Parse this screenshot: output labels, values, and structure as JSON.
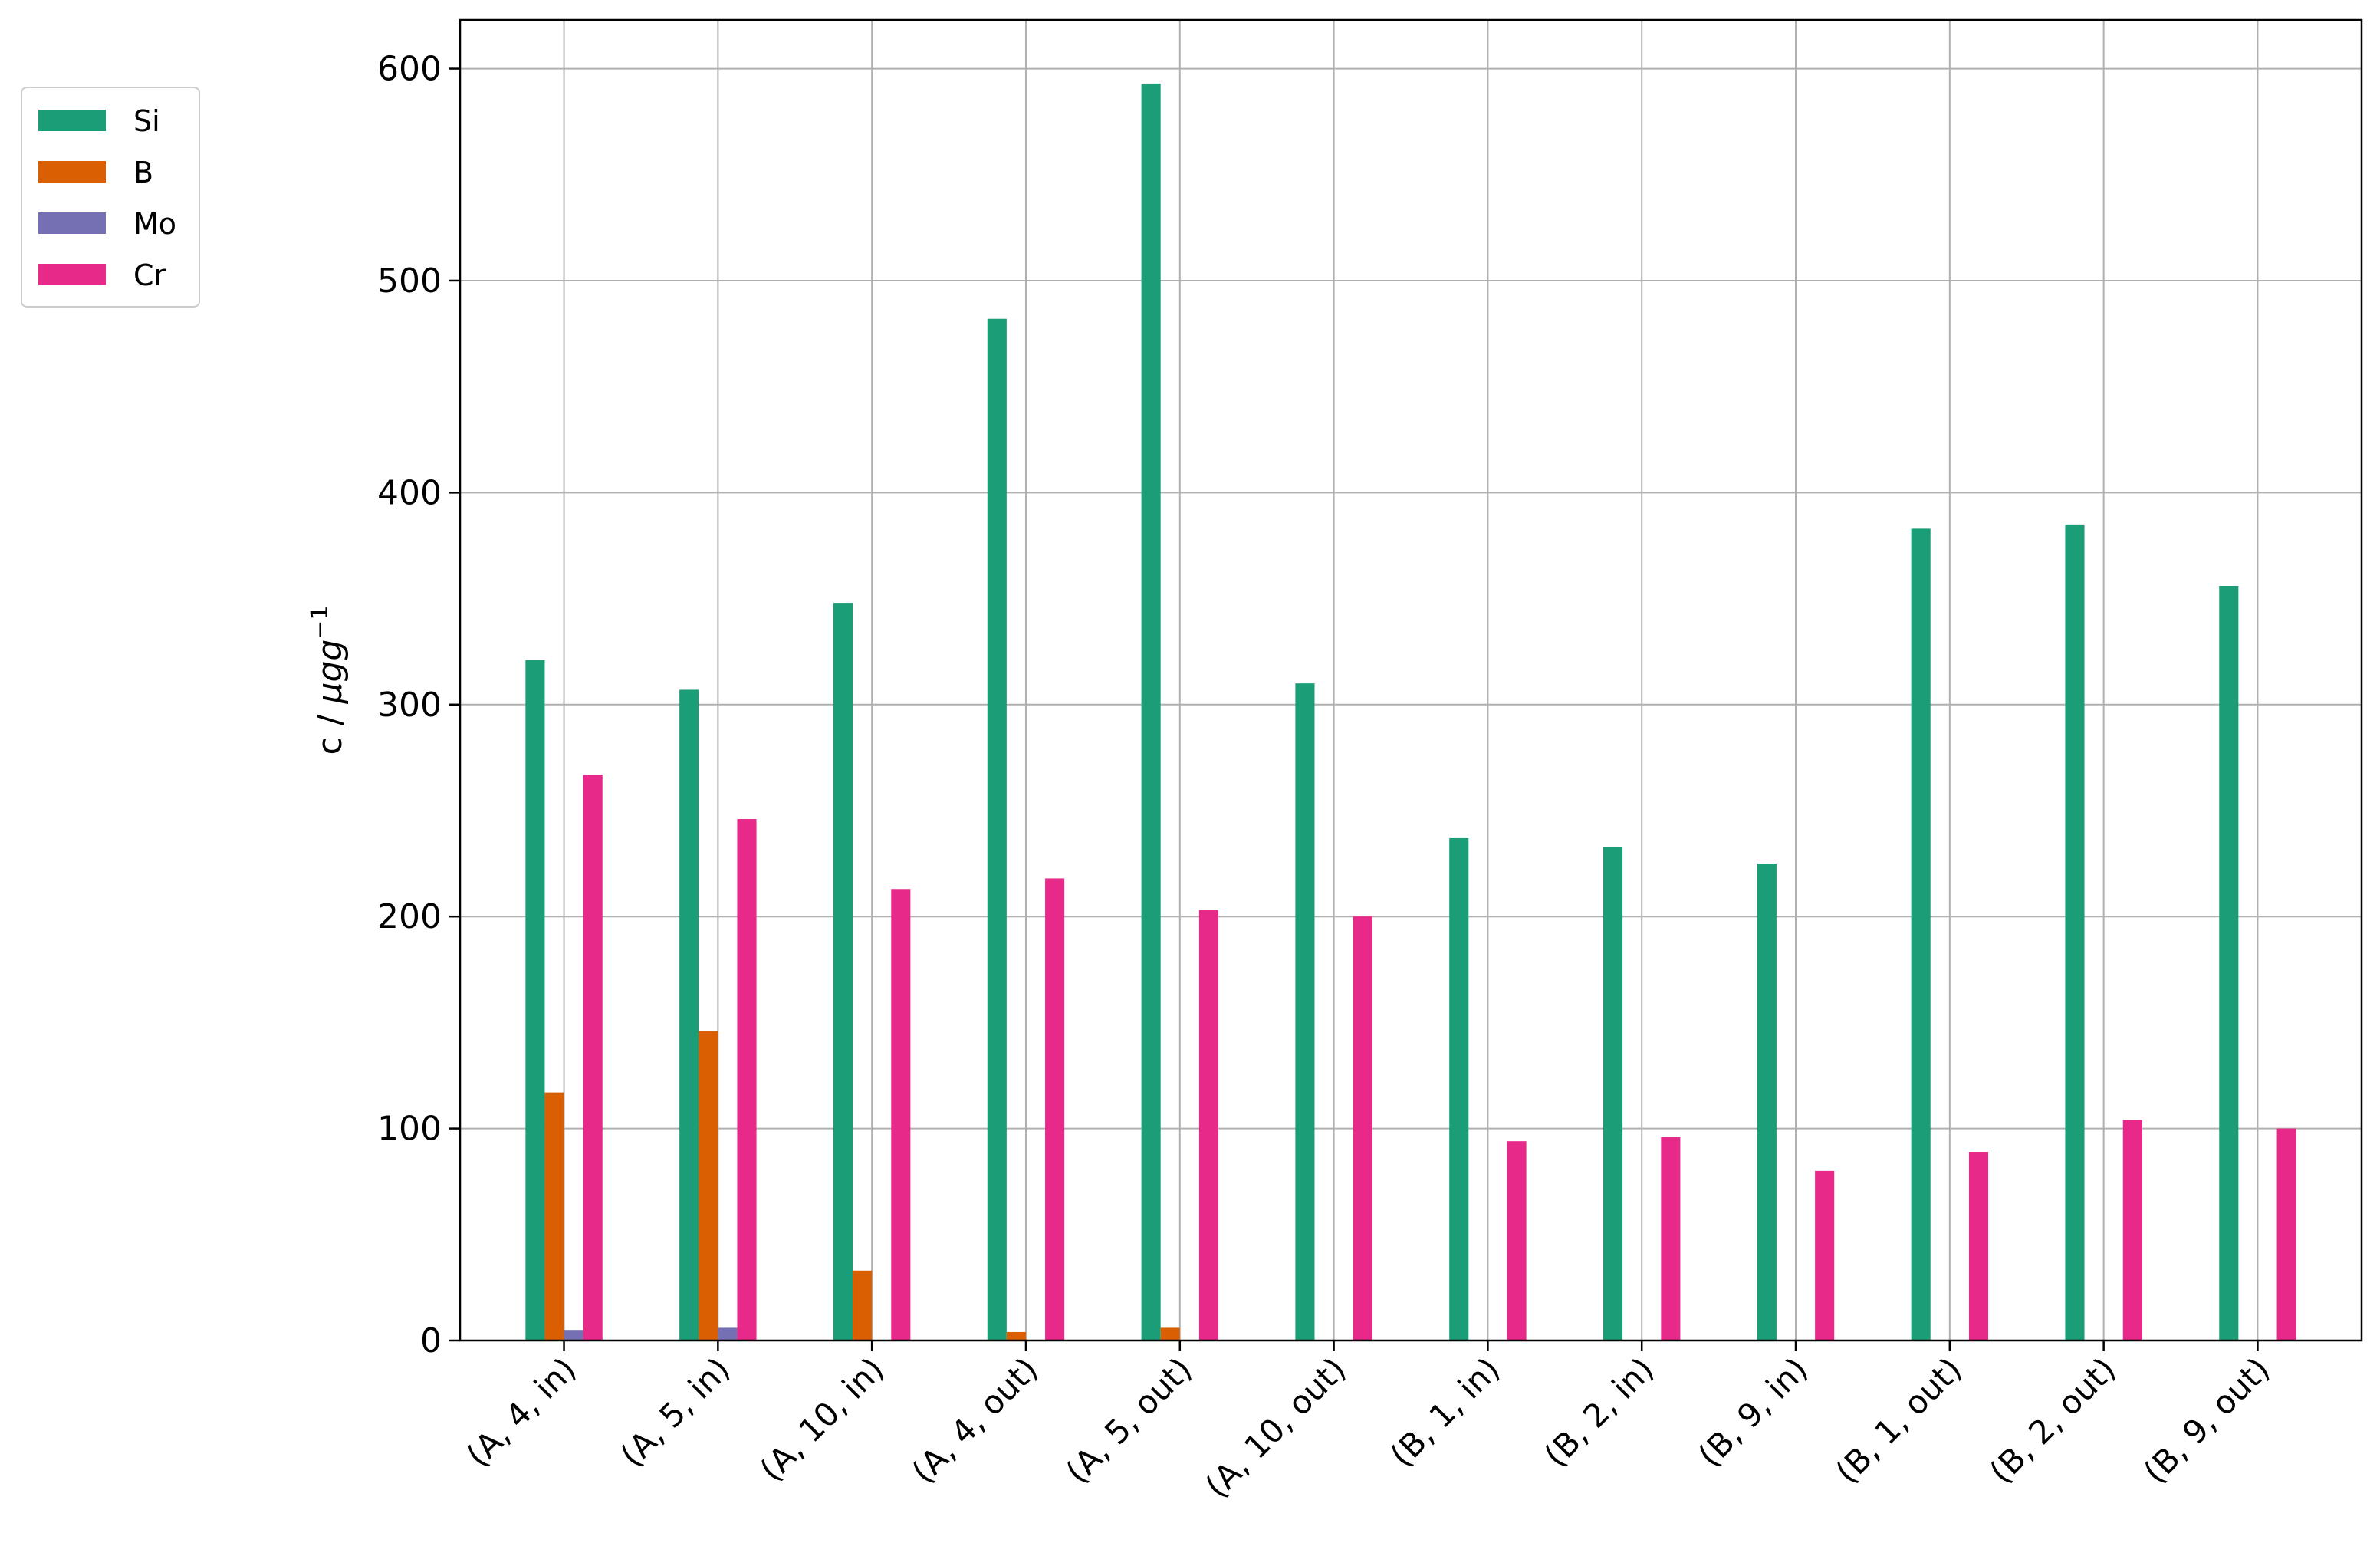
{
  "chart_data": {
    "type": "bar",
    "title": "",
    "xlabel": "",
    "ylabel": {
      "text": "c / ",
      "math": "μgg",
      "exp": "−1"
    },
    "ylim": [
      0,
      623
    ],
    "yticks": [
      0,
      100,
      200,
      300,
      400,
      500,
      600
    ],
    "grid": true,
    "legend_position": "outside-top-left",
    "categories": [
      "(A, 4, in)",
      "(A, 5, in)",
      "(A, 10, in)",
      "(A, 4, out)",
      "(A, 5, out)",
      "(A, 10, out)",
      "(B, 1, in)",
      "(B, 2, in)",
      "(B, 9, in)",
      "(B, 1, out)",
      "(B, 2, out)",
      "(B, 9, out)"
    ],
    "series": [
      {
        "name": "Si",
        "color": "#1b9e77",
        "values": [
          321,
          307,
          348,
          482,
          593,
          310,
          237,
          233,
          225,
          383,
          385,
          356
        ]
      },
      {
        "name": "B",
        "color": "#d95f02",
        "values": [
          117,
          146,
          33,
          4,
          6,
          0,
          0,
          0,
          0,
          0,
          0,
          0
        ]
      },
      {
        "name": "Mo",
        "color": "#7570b3",
        "values": [
          5,
          6,
          0,
          0,
          0,
          0,
          0,
          0,
          0,
          0,
          0,
          0
        ]
      },
      {
        "name": "Cr",
        "color": "#e7298a",
        "values": [
          267,
          246,
          213,
          218,
          203,
          200,
          94,
          96,
          80,
          89,
          104,
          100
        ]
      }
    ]
  }
}
